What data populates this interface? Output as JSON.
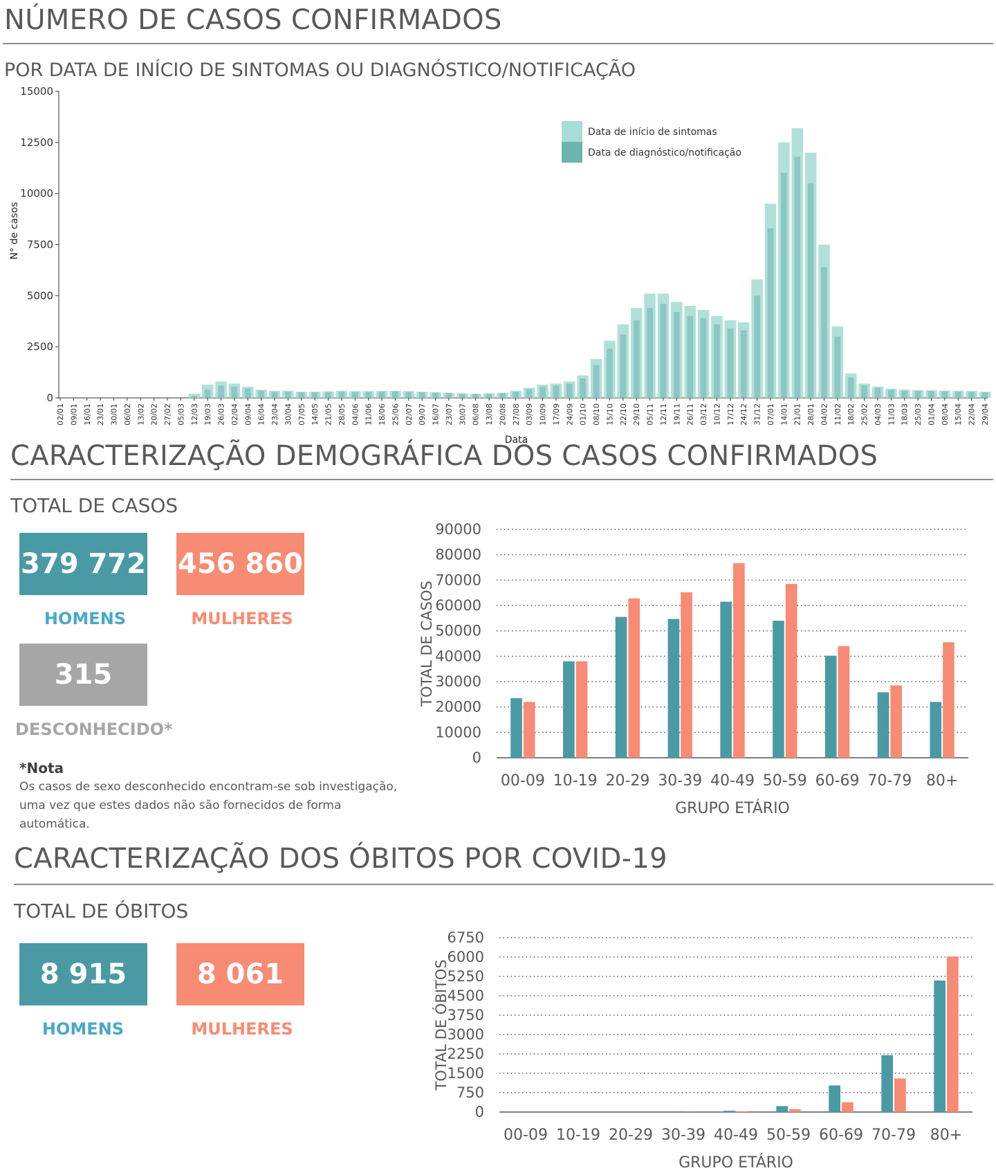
{
  "section1": {
    "title": "NÚMERO DE CASOS CONFIRMADOS",
    "subtitle": "POR DATA DE INÍCIO DE SINTOMAS OU DIAGNÓSTICO/NOTIFICAÇÃO"
  },
  "section2": {
    "title": "CARACTERIZAÇÃO DEMOGRÁFICA DOS CASOS CONFIRMADOS",
    "subtitle": "TOTAL DE CASOS",
    "men_value": "379 772",
    "men_label": "HOMENS",
    "women_value": "456 860",
    "women_label": "MULHERES",
    "unknown_value": "315",
    "unknown_label": "DESCONHECIDO*",
    "note_title": "*Nota",
    "note_line1": "Os casos de sexo desconhecido encontram-se sob investigação,",
    "note_line2": "uma vez que estes dados não são fornecidos de forma automática."
  },
  "section3": {
    "title": "CARACTERIZAÇÃO DOS ÓBITOS POR COVID-19",
    "subtitle": "TOTAL DE ÓBITOS",
    "men_value": "8 915",
    "men_label": "HOMENS",
    "women_value": "8 061",
    "women_label": "MULHERES"
  },
  "colors": {
    "men": "#4a9aa5",
    "women": "#f88b73",
    "unknown": "#a6a6a6",
    "men_label": "#4aa8c8",
    "women_label": "#f88b73",
    "symptoms": "#a8ddd5",
    "diagnosis": "#6db3ae"
  },
  "chart_data": [
    {
      "type": "area",
      "ylabel": "N° de casos",
      "xlabel": "Data",
      "ylim": [
        0,
        15000
      ],
      "yticks": [
        0,
        2500,
        5000,
        7500,
        10000,
        12500,
        15000
      ],
      "x": [
        "02/01",
        "09/01",
        "16/01",
        "23/01",
        "30/01",
        "06/02",
        "13/02",
        "20/02",
        "27/02",
        "05/03",
        "12/03",
        "19/03",
        "26/03",
        "02/04",
        "09/04",
        "16/04",
        "23/04",
        "30/04",
        "07/05",
        "14/05",
        "21/05",
        "28/05",
        "04/06",
        "11/06",
        "18/06",
        "25/06",
        "02/07",
        "09/07",
        "16/07",
        "23/07",
        "30/07",
        "06/08",
        "13/08",
        "20/08",
        "27/08",
        "03/09",
        "10/09",
        "17/09",
        "24/09",
        "01/10",
        "08/10",
        "15/10",
        "22/10",
        "29/10",
        "05/11",
        "12/11",
        "19/11",
        "26/11",
        "03/12",
        "10/12",
        "17/12",
        "24/12",
        "31/12",
        "07/01",
        "14/01",
        "21/01",
        "28/01",
        "04/02",
        "11/02",
        "18/02",
        "25/02",
        "04/03",
        "11/03",
        "18/03",
        "25/03",
        "01/04",
        "08/04",
        "15/04",
        "22/04",
        "29/04"
      ],
      "legend_position": "top-right",
      "series": [
        {
          "name": "Data de início de sintomas",
          "values": [
            0,
            0,
            0,
            0,
            0,
            0,
            0,
            0,
            0,
            0,
            200,
            650,
            800,
            700,
            550,
            400,
            350,
            350,
            300,
            300,
            320,
            350,
            330,
            330,
            340,
            350,
            330,
            300,
            280,
            250,
            220,
            200,
            220,
            250,
            350,
            500,
            650,
            700,
            800,
            1100,
            1900,
            2800,
            3600,
            4400,
            5100,
            5100,
            4700,
            4500,
            4300,
            4000,
            3800,
            3700,
            5800,
            9500,
            12500,
            13200,
            12000,
            7500,
            3500,
            1200,
            700,
            550,
            450,
            400,
            380,
            370,
            360,
            350,
            340,
            300
          ]
        },
        {
          "name": "Data de diagnóstico/notificação",
          "values": [
            0,
            0,
            0,
            0,
            0,
            0,
            0,
            0,
            0,
            0,
            100,
            400,
            600,
            550,
            450,
            350,
            300,
            300,
            280,
            280,
            290,
            310,
            300,
            300,
            310,
            320,
            300,
            280,
            260,
            240,
            210,
            200,
            210,
            230,
            300,
            420,
            550,
            600,
            700,
            950,
            1600,
            2400,
            3100,
            3800,
            4400,
            4600,
            4200,
            4000,
            3900,
            3600,
            3400,
            3300,
            5000,
            8300,
            11000,
            11800,
            10500,
            6400,
            3000,
            1000,
            600,
            500,
            400,
            360,
            340,
            330,
            320,
            310,
            300,
            270
          ]
        }
      ]
    },
    {
      "type": "bar",
      "xlabel": "GRUPO ETÁRIO",
      "ylabel": "TOTAL DE CASOS",
      "ylim": [
        0,
        90000
      ],
      "yticks": [
        "0",
        "10000",
        "20000",
        "30000",
        "40000",
        "50000",
        "60000",
        "70000",
        "80000",
        "90000"
      ],
      "categories": [
        "00-09",
        "10-19",
        "20-29",
        "30-39",
        "40-49",
        "50-59",
        "60-69",
        "70-79",
        "80+"
      ],
      "series": [
        {
          "values": [
            23500,
            38000,
            55500,
            54700,
            61500,
            54000,
            40200,
            25800,
            22000
          ]
        },
        {
          "values": [
            22000,
            38000,
            62800,
            65200,
            76700,
            68500,
            44000,
            28500,
            45500
          ]
        }
      ]
    },
    {
      "type": "bar",
      "xlabel": "GRUPO ETÁRIO",
      "ylabel": "TOTAL DE ÓBITOS",
      "ylim": [
        0,
        6750
      ],
      "yticks": [
        "0",
        "750",
        "1500",
        "2250",
        "3000",
        "3750",
        "4500",
        "5250",
        "6000",
        "6750"
      ],
      "categories": [
        "00-09",
        "10-19",
        "20-29",
        "30-39",
        "40-49",
        "50-59",
        "60-69",
        "70-79",
        "80+"
      ],
      "series": [
        {
          "values": [
            3,
            2,
            5,
            12,
            50,
            230,
            1030,
            2200,
            5090
          ]
        },
        {
          "values": [
            2,
            2,
            3,
            8,
            30,
            110,
            380,
            1300,
            6020
          ]
        }
      ]
    }
  ]
}
